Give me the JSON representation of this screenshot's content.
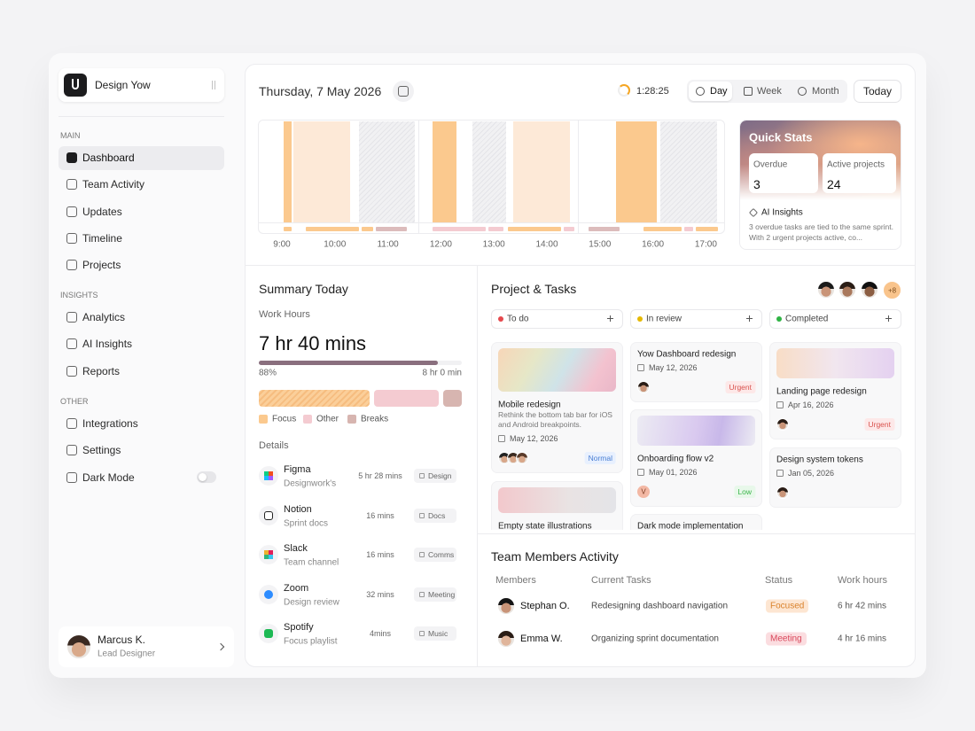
{
  "sidebar": {
    "workspace": "Design Yow",
    "sections": [
      {
        "title": "MAIN",
        "items": [
          "Dashboard",
          "Team Activity",
          "Updates",
          "Timeline",
          "Projects"
        ]
      },
      {
        "title": "INSIGHTS",
        "items": [
          "Analytics",
          "AI Insights",
          "Reports"
        ]
      },
      {
        "title": "OTHER",
        "items": [
          "Integrations",
          "Settings",
          "Dark Mode"
        ]
      }
    ],
    "user": {
      "name": "Marcus K.",
      "role": "Lead Designer"
    }
  },
  "header": {
    "date": "Thursday, 7 May 2026",
    "timer": "1:28:25",
    "tabs": [
      "Day",
      "Week",
      "Month"
    ],
    "today": "Today"
  },
  "timeline": {
    "hours": [
      "9:00",
      "10:00",
      "11:00",
      "12:00",
      "13:00",
      "14:00",
      "15:00",
      "16:00",
      "17:00"
    ]
  },
  "quick_stats": {
    "title": "Quick Stats",
    "stats": [
      {
        "label": "Overdue",
        "value": 3
      },
      {
        "label": "Active projects",
        "value": 24
      }
    ],
    "insight_title": "AI Insights",
    "insight_text": "3 overdue tasks are tied to the same sprint. With 2 urgent projects active, co..."
  },
  "summary": {
    "title": "Summary Today",
    "work_hours_label": "Work Hours",
    "total": "7 hr 40 mins",
    "progress": {
      "value": 88,
      "label": "88%"
    },
    "goal": "8 hr 0 min",
    "legend": [
      "Focus",
      "Other",
      "Breaks"
    ],
    "details_title": "Details",
    "apps": [
      {
        "name": "Figma",
        "sub": "Designwork's",
        "time": "5 hr 28 mins",
        "tag": "Design"
      },
      {
        "name": "Notion",
        "sub": "Sprint docs",
        "time": "16 mins",
        "tag": "Docs"
      },
      {
        "name": "Slack",
        "sub": "Team channel",
        "time": "16 mins",
        "tag": "Comms"
      },
      {
        "name": "Zoom",
        "sub": "Design review",
        "time": "32 mins",
        "tag": "Meeting"
      },
      {
        "name": "Spotify",
        "sub": "Focus playlist",
        "time": "4mins",
        "tag": "Music"
      }
    ]
  },
  "projects": {
    "title": "Project & Tasks",
    "more": "+8",
    "columns": [
      {
        "name": "To do",
        "cards": [
          {
            "title": "Mobile redesign",
            "description": "Rethink the bottom tab bar for iOS and Android breakpoints.",
            "date": "May 12, 2026",
            "tag": "Normal"
          },
          {
            "title": "Empty state illustrations"
          }
        ]
      },
      {
        "name": "In review",
        "cards": [
          {
            "title": "Yow Dashboard redesign",
            "date": "May 12, 2026",
            "tag": "Urgent"
          },
          {
            "title": "Onboarding flow v2",
            "date": "May 01, 2026",
            "avatar": "V",
            "tag": "Low"
          },
          {
            "title": "Dark mode implementation"
          }
        ]
      },
      {
        "name": "Completed",
        "cards": [
          {
            "title": "Landing page redesign",
            "date": "Apr 16, 2026",
            "tag": "Urgent"
          },
          {
            "title": "Design system tokens",
            "date": "Jan 05, 2026"
          }
        ]
      }
    ]
  },
  "team": {
    "title": "Team Members Activity",
    "headers": [
      "Members",
      "Current Tasks",
      "Status",
      "Work hours"
    ],
    "rows": [
      [
        "Stephan O.",
        "Redesigning dashboard navigation",
        "Focused",
        "6 hr 42 mins"
      ],
      [
        "Emma W.",
        "Organizing sprint documentation",
        "Meeting",
        "4 hr 16 mins"
      ]
    ]
  }
}
